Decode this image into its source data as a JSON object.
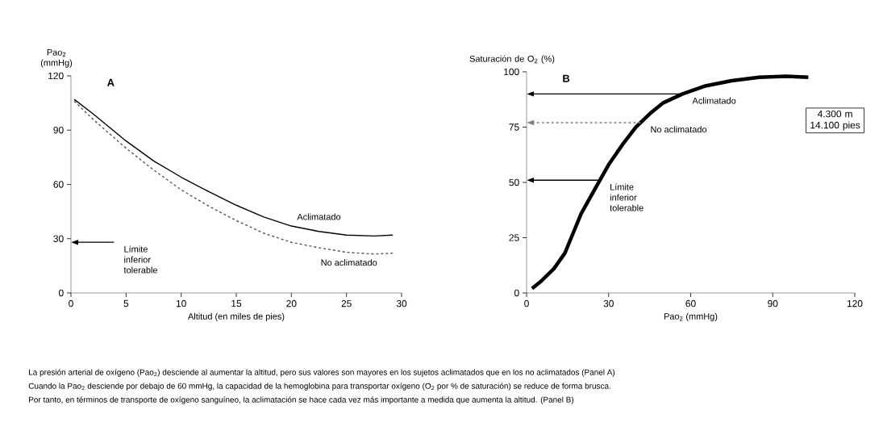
{
  "chart_data": [
    {
      "type": "line",
      "title": "A",
      "xlabel": "Altitud (en miles de pies)",
      "ylabel": "Pao$_{2}$ (mmHg)",
      "x": [
        0.3,
        2,
        5,
        7.5,
        10,
        12.5,
        15,
        17.5,
        20,
        22.5,
        25,
        27.5,
        29.2
      ],
      "series": [
        {
          "name": "Aclimatado",
          "color": "#000000",
          "line_style": "solid",
          "values": [
            107,
            99,
            84,
            73,
            64,
            56,
            48.5,
            42,
            37,
            34,
            32,
            31.5,
            32
          ]
        },
        {
          "name": "No aclimatado",
          "color": "#555555",
          "line_style": "dashed",
          "values": [
            106,
            96,
            80,
            68,
            57,
            48,
            40,
            33,
            28,
            25,
            22.5,
            21.5,
            22
          ]
        }
      ],
      "xlim": [
        0,
        30
      ],
      "xticks": [
        0,
        5,
        10,
        15,
        20,
        25,
        30
      ],
      "ylim": [
        0,
        120
      ],
      "yticks": [
        0,
        30,
        60,
        90,
        120
      ],
      "ref_lines": [
        {
          "axis": "y",
          "value": 28,
          "label": "Límite inferior tolerable",
          "color": "#000000",
          "line_style": "solid"
        }
      ],
      "grid": false,
      "legend": false,
      "marker": "none"
    },
    {
      "type": "line",
      "title": "B",
      "xlabel": "Pao$_{2}$ (mmHg)",
      "ylabel": "Saturación de O$_{2}$ (%)",
      "x": [
        2,
        5,
        10,
        14,
        17,
        20,
        25,
        30,
        35,
        40,
        45,
        50,
        57,
        65,
        75,
        85,
        95,
        103
      ],
      "series": [
        {
          "color": "#000000",
          "line_style": "solid",
          "values": [
            2,
            5,
            11,
            18,
            27,
            36,
            47,
            58,
            67,
            75,
            81,
            86,
            90,
            93.5,
            96,
            97.5,
            98,
            97.5
          ]
        }
      ],
      "xlim": [
        0,
        120
      ],
      "xticks": [
        0,
        30,
        60,
        90,
        120
      ],
      "ylim": [
        0,
        100
      ],
      "yticks": [
        0,
        25,
        50,
        75,
        100
      ],
      "ref_lines": [
        {
          "axis": "y",
          "value": 90,
          "label": "Aclimatado",
          "color": "#000000",
          "line_style": "solid"
        },
        {
          "axis": "y",
          "value": 77,
          "label": "No aclimatado",
          "color": "#808080",
          "line_style": "dashed"
        },
        {
          "axis": "y",
          "value": 51,
          "label": "Límite inferior tolerable",
          "color": "#000000",
          "line_style": "solid"
        }
      ],
      "annotations": [
        "4.300 m 14.100 pies",
        "La presión arterial de oxígeno (Pao$_{2}$) desciende al aumentar la altitud, pero sus valores son mayores en los sujetos aclimatados que en los no aclimatados (Panel A)",
        "Cuando la Pao$_{2}$ desciende por debajo de 60 mmHg, la capacidad de la hemoglobina para transportar oxígeno (O$_{2}$ por % de saturación) se reduce de forma brusca.",
        "Por tanto, en términos de transporte de oxígeno sanguíneo, la aclimatación se hace cada vez más importante a medida que aumenta la altitud. (Panel B)"
      ],
      "grid": false,
      "legend": false,
      "marker": "none"
    }
  ]
}
